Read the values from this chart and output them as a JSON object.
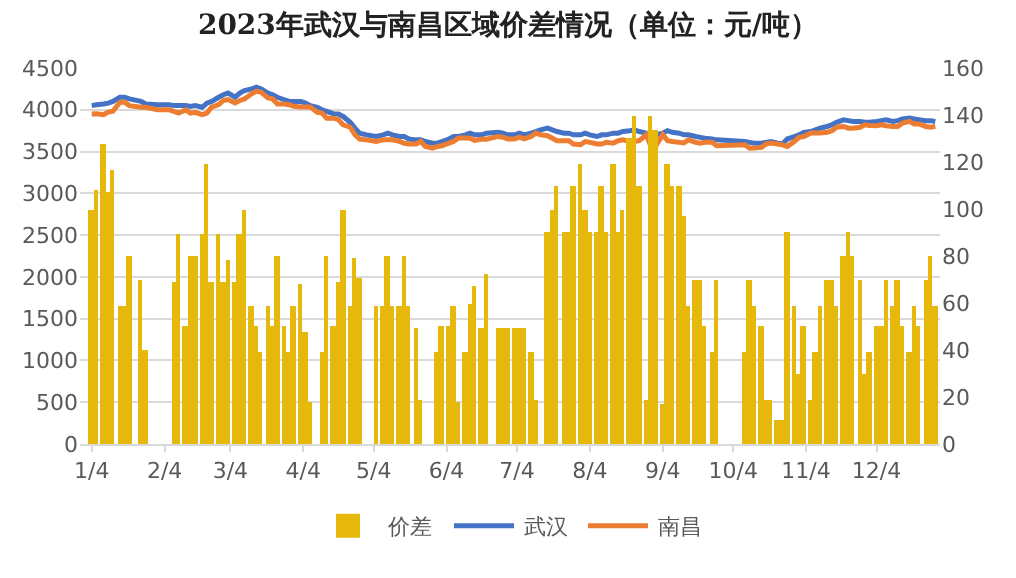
{
  "chart_data": {
    "type": "bar",
    "title": "2023年武汉与南昌区域价差情况（单位：元/吨）",
    "x": [
      "2023-01-04",
      "2023-01-06",
      "2023-01-09",
      "2023-01-11",
      "2023-01-13",
      "2023-01-16",
      "2023-01-18",
      "2023-01-20",
      "2023-01-25",
      "2023-01-27",
      "2023-02-01",
      "2023-02-06",
      "2023-02-08",
      "2023-02-10",
      "2023-02-13",
      "2023-02-15",
      "2023-02-17",
      "2023-02-20",
      "2023-02-22",
      "2023-02-24",
      "2023-02-27",
      "2023-03-01",
      "2023-03-03",
      "2023-03-06",
      "2023-03-08",
      "2023-03-10",
      "2023-03-13",
      "2023-03-15",
      "2023-03-17",
      "2023-03-20",
      "2023-03-22",
      "2023-03-24",
      "2023-03-27",
      "2023-03-29",
      "2023-03-31",
      "2023-04-03",
      "2023-04-05",
      "2023-04-07",
      "2023-04-10",
      "2023-04-12",
      "2023-04-14",
      "2023-04-17",
      "2023-04-19",
      "2023-04-21",
      "2023-04-24",
      "2023-04-26",
      "2023-04-28",
      "2023-05-01",
      "2023-05-05",
      "2023-05-08",
      "2023-05-10",
      "2023-05-12",
      "2023-05-15",
      "2023-05-17",
      "2023-05-19",
      "2023-05-22",
      "2023-05-24",
      "2023-05-26",
      "2023-05-29",
      "2023-05-31",
      "2023-06-02",
      "2023-06-05",
      "2023-06-07",
      "2023-06-09",
      "2023-06-12",
      "2023-06-14",
      "2023-06-16",
      "2023-06-19",
      "2023-06-21",
      "2023-06-26",
      "2023-06-28",
      "2023-06-30",
      "2023-07-03",
      "2023-07-05",
      "2023-07-07",
      "2023-07-10",
      "2023-07-12",
      "2023-07-14",
      "2023-07-17",
      "2023-07-19",
      "2023-07-21",
      "2023-07-24",
      "2023-07-26",
      "2023-07-28",
      "2023-07-31",
      "2023-08-02",
      "2023-08-04",
      "2023-08-07",
      "2023-08-09",
      "2023-08-11",
      "2023-08-14",
      "2023-08-16",
      "2023-08-18",
      "2023-08-21",
      "2023-08-23",
      "2023-08-25",
      "2023-08-28",
      "2023-08-30",
      "2023-09-01",
      "2023-09-04",
      "2023-09-06",
      "2023-09-08",
      "2023-09-11",
      "2023-09-13",
      "2023-09-15",
      "2023-09-18",
      "2023-09-20",
      "2023-09-22",
      "2023-09-25",
      "2023-09-27",
      "2023-10-09",
      "2023-10-11",
      "2023-10-13",
      "2023-10-16",
      "2023-10-18",
      "2023-10-20",
      "2023-10-23",
      "2023-10-25",
      "2023-10-27",
      "2023-10-30",
      "2023-11-01",
      "2023-11-03",
      "2023-11-06",
      "2023-11-08",
      "2023-11-10",
      "2023-11-13",
      "2023-11-15",
      "2023-11-17",
      "2023-11-20",
      "2023-11-22",
      "2023-11-24",
      "2023-11-27",
      "2023-11-29",
      "2023-12-01",
      "2023-12-04",
      "2023-12-06",
      "2023-12-08",
      "2023-12-11",
      "2023-12-13",
      "2023-12-15",
      "2023-12-18",
      "2023-12-20",
      "2023-12-22",
      "2023-12-25",
      "2023-12-27",
      "2023-12-29"
    ],
    "series": [
      {
        "name": "价差",
        "axis": "y2",
        "color": "#e6b80b",
        "values": [
          100,
          108,
          128,
          107,
          117,
          59,
          59,
          80,
          70,
          40,
          null,
          null,
          69,
          89,
          50,
          80,
          80,
          89,
          119,
          69,
          89,
          69,
          78,
          69,
          89,
          100,
          59,
          50,
          39,
          59,
          50,
          80,
          50,
          39,
          59,
          68,
          48,
          18,
          null,
          39,
          80,
          50,
          69,
          100,
          59,
          79,
          71,
          null,
          59,
          59,
          80,
          59,
          59,
          80,
          59,
          49,
          19,
          null,
          null,
          39,
          50,
          50,
          59,
          18,
          39,
          60,
          67,
          49,
          72,
          49,
          49,
          49,
          49,
          49,
          49,
          39,
          19,
          null,
          90,
          100,
          110,
          90,
          90,
          110,
          119,
          100,
          90,
          90,
          110,
          90,
          119,
          90,
          100,
          130,
          140,
          110,
          19,
          140,
          134,
          17,
          119,
          110,
          110,
          97,
          59,
          70,
          70,
          50,
          39,
          70,
          39,
          70,
          59,
          50,
          19,
          19,
          10,
          10,
          90,
          59,
          30,
          50,
          19,
          39,
          59,
          70,
          70,
          59,
          80,
          90,
          80,
          70,
          30,
          39,
          50,
          50,
          70,
          59,
          70,
          50,
          39,
          59,
          50,
          70,
          80,
          59
        ]
      },
      {
        "name": "武汉",
        "type": "line",
        "color": "#4472c4",
        "values": [
          4050,
          4060,
          4070,
          4080,
          4100,
          4150,
          4150,
          4130,
          4100,
          4070,
          4060,
          4060,
          4050,
          4050,
          4050,
          4040,
          4050,
          4030,
          4080,
          4100,
          4150,
          4180,
          4200,
          4150,
          4200,
          4230,
          4250,
          4270,
          4250,
          4200,
          4180,
          4150,
          4120,
          4100,
          4100,
          4100,
          4080,
          4050,
          4030,
          4000,
          3980,
          3950,
          3950,
          3920,
          3850,
          3780,
          3720,
          3700,
          3680,
          3700,
          3720,
          3700,
          3680,
          3680,
          3650,
          3640,
          3640,
          3620,
          3600,
          3600,
          3620,
          3650,
          3680,
          3680,
          3700,
          3720,
          3700,
          3700,
          3720,
          3730,
          3720,
          3700,
          3700,
          3720,
          3700,
          3720,
          3740,
          3760,
          3780,
          3760,
          3740,
          3720,
          3720,
          3700,
          3700,
          3720,
          3700,
          3680,
          3700,
          3700,
          3720,
          3720,
          3740,
          3750,
          3760,
          3740,
          3720,
          3700,
          3700,
          3720,
          3750,
          3730,
          3720,
          3700,
          3700,
          3680,
          3670,
          3660,
          3650,
          3640,
          3620,
          3610,
          3600,
          3600,
          3610,
          3620,
          3600,
          3590,
          3650,
          3680,
          3700,
          3730,
          3740,
          3760,
          3780,
          3800,
          3820,
          3850,
          3880,
          3870,
          3860,
          3860,
          3850,
          3850,
          3860,
          3870,
          3880,
          3860,
          3870,
          3890,
          3900,
          3890,
          3880,
          3870,
          3870,
          3860
        ]
      },
      {
        "name": "南昌",
        "type": "line",
        "color": "#ed7d31",
        "values": [
          3950,
          3952,
          3942,
          3973,
          3983,
          4091,
          4091,
          4050,
          4030,
          4030,
          4000,
          4000,
          3981,
          3961,
          4000,
          3960,
          3970,
          3941,
          3961,
          4031,
          4061,
          4111,
          4122,
          4081,
          4111,
          4130,
          4191,
          4220,
          4211,
          4141,
          4130,
          4070,
          4070,
          4061,
          4041,
          4032,
          4032,
          4032,
          3970,
          3961,
          3900,
          3900,
          3881,
          3820,
          3791,
          3701,
          3649,
          3640,
          3621,
          3641,
          3640,
          3641,
          3621,
          3600,
          3591,
          3591,
          3621,
          3560,
          3540,
          3561,
          3570,
          3600,
          3621,
          3662,
          3661,
          3660,
          3633,
          3651,
          3648,
          3681,
          3671,
          3651,
          3651,
          3671,
          3651,
          3681,
          3721,
          3700,
          3690,
          3660,
          3630,
          3630,
          3630,
          3590,
          3581,
          3620,
          3610,
          3590,
          3590,
          3610,
          3601,
          3630,
          3640,
          3620,
          3620,
          3630,
          3701,
          3560,
          3566,
          3703,
          3631,
          3620,
          3610,
          3603,
          3641,
          3610,
          3600,
          3610,
          3611,
          3570,
          3581,
          3540,
          3541,
          3550,
          3591,
          3601,
          3590,
          3580,
          3560,
          3621,
          3670,
          3680,
          3721,
          3721,
          3721,
          3730,
          3750,
          3791,
          3800,
          3780,
          3780,
          3790,
          3820,
          3811,
          3810,
          3820,
          3810,
          3801,
          3800,
          3840,
          3861,
          3831,
          3830,
          3800,
          3790,
          3801
        ]
      }
    ],
    "xlim": [
      "2022-12-30",
      "2023-12-31"
    ],
    "xticks": [
      {
        "value": "2023-01-04",
        "label": "1/4"
      },
      {
        "value": "2023-02-04",
        "label": "2/4"
      },
      {
        "value": "2023-03-04",
        "label": "3/4"
      },
      {
        "value": "2023-04-04",
        "label": "4/4"
      },
      {
        "value": "2023-05-04",
        "label": "5/4"
      },
      {
        "value": "2023-06-04",
        "label": "6/4"
      },
      {
        "value": "2023-07-04",
        "label": "7/4"
      },
      {
        "value": "2023-08-04",
        "label": "8/4"
      },
      {
        "value": "2023-09-04",
        "label": "9/4"
      },
      {
        "value": "2023-10-04",
        "label": "10/4"
      },
      {
        "value": "2023-11-04",
        "label": "11/4"
      },
      {
        "value": "2023-12-04",
        "label": "12/4"
      }
    ],
    "ylim": [
      0,
      4500
    ],
    "yticks": [
      0,
      500,
      1000,
      1500,
      2000,
      2500,
      3000,
      3500,
      4000,
      4500
    ],
    "y2lim": [
      0,
      160
    ],
    "y2ticks": [
      0,
      20,
      40,
      60,
      80,
      100,
      120,
      140,
      160
    ],
    "grid": "y",
    "legend": "bottom",
    "marker": "none",
    "line_style": "solid"
  }
}
